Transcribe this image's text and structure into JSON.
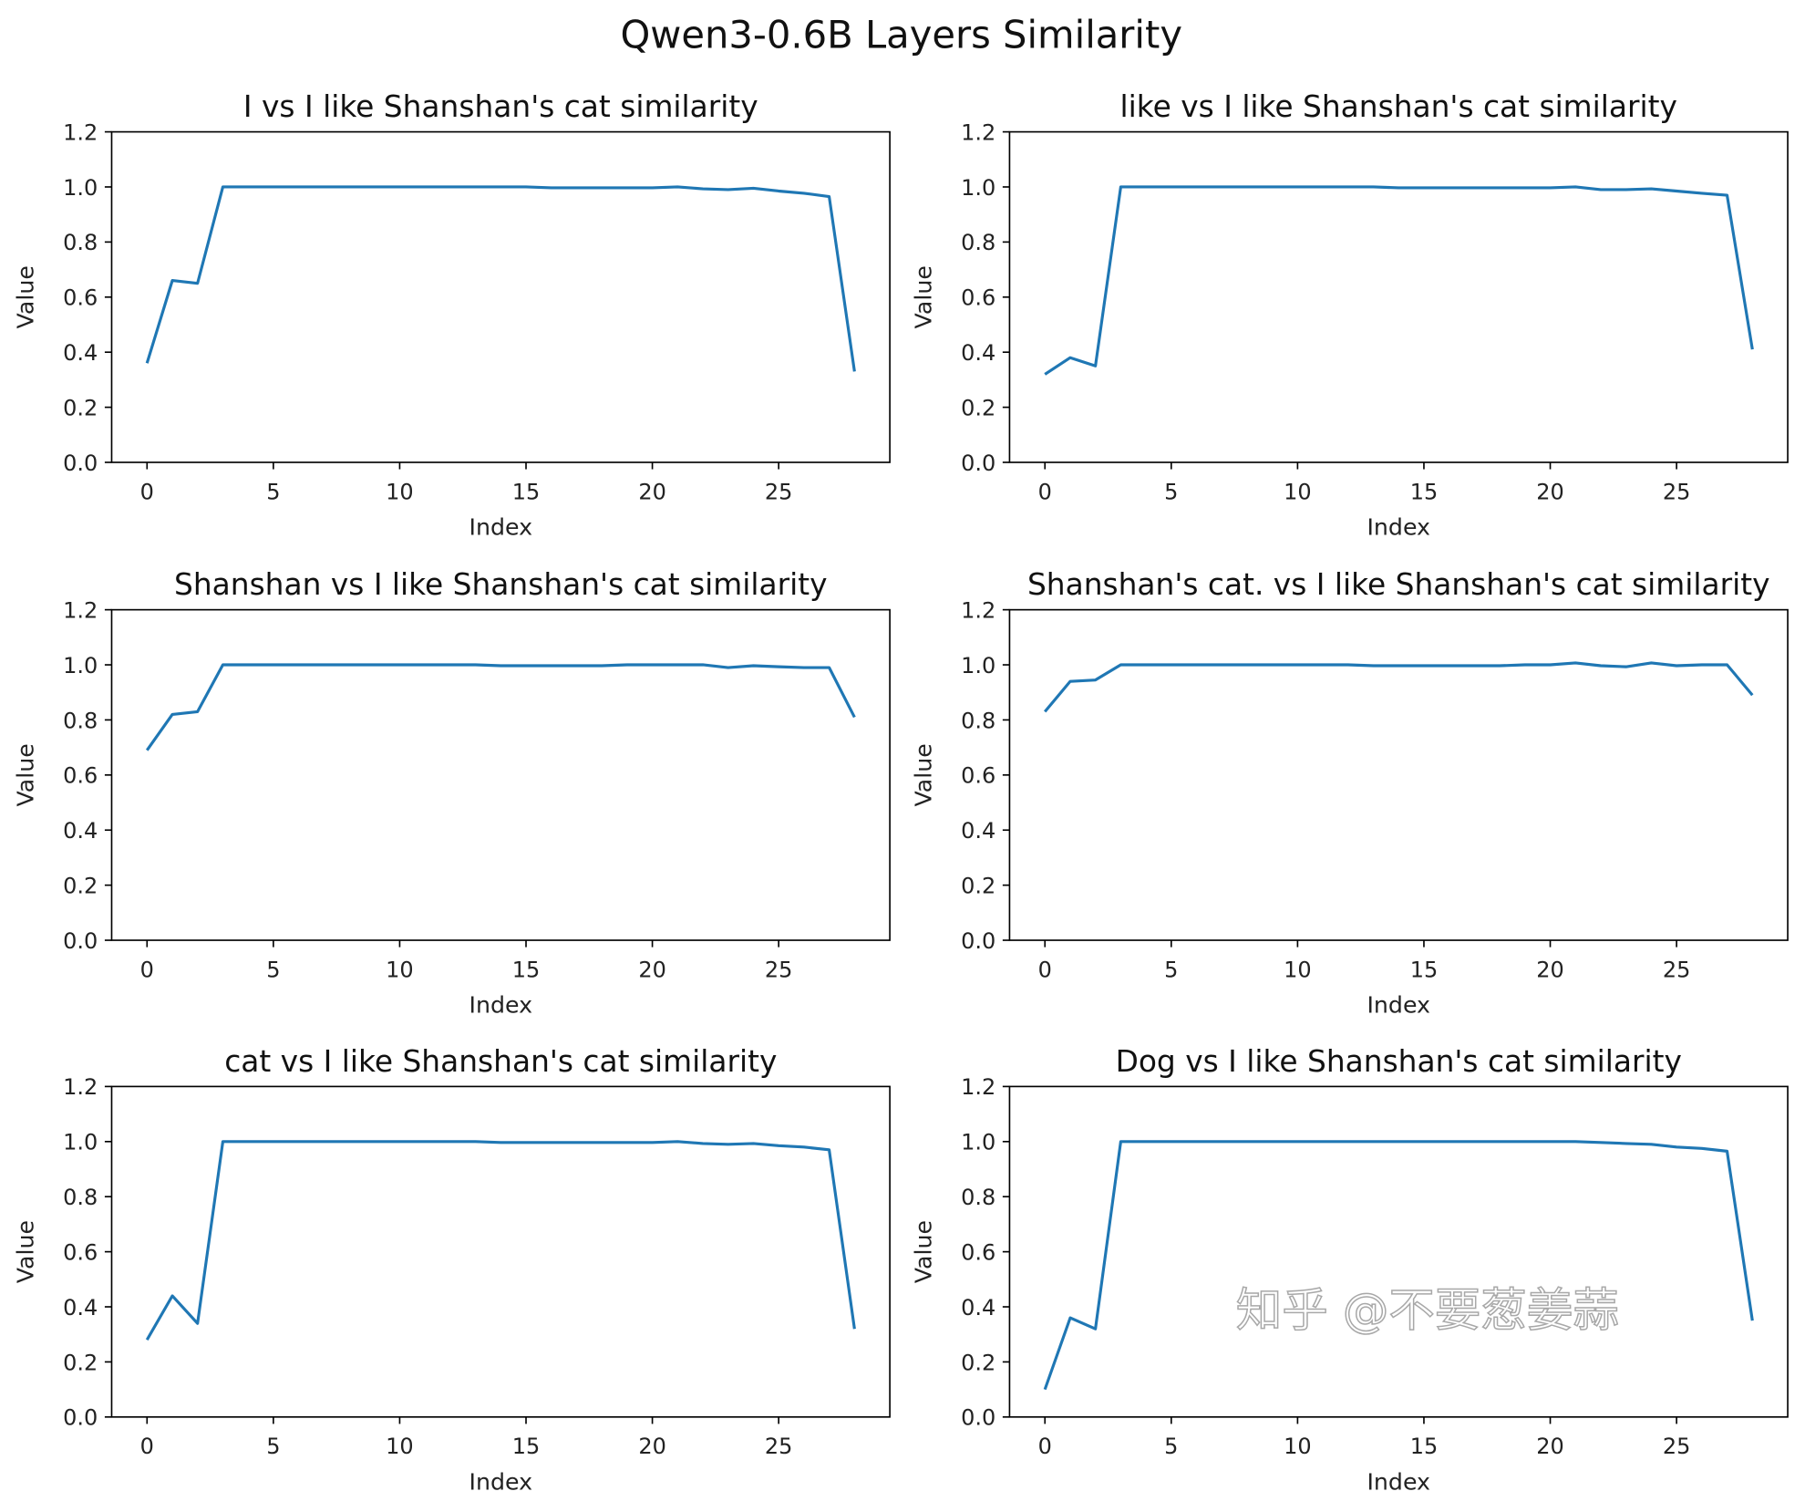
{
  "chart_data": {
    "title": "Qwen3-0.6B Layers Similarity",
    "watermark": "知乎 @不要葱姜蒜",
    "line_color": "#1f77b4",
    "subplots": [
      {
        "type": "line",
        "title": "I vs I like Shanshan's cat similarity",
        "xlabel": "Index",
        "ylabel": "Value",
        "xlim": [
          -1.4,
          29.4
        ],
        "ylim": [
          0,
          1.2
        ],
        "xticks": [
          0,
          5,
          10,
          15,
          20,
          25
        ],
        "yticks": [
          "0.0",
          "0.2",
          "0.4",
          "0.6",
          "0.8",
          "1.0",
          "1.2"
        ],
        "x": [
          0,
          1,
          2,
          3,
          4,
          5,
          6,
          7,
          8,
          9,
          10,
          11,
          12,
          13,
          14,
          15,
          16,
          17,
          18,
          19,
          20,
          21,
          22,
          23,
          24,
          25,
          26,
          27,
          28
        ],
        "y": [
          0.36,
          0.66,
          0.65,
          1.0,
          1.0,
          1.0,
          1.0,
          1.0,
          1.0,
          1.0,
          1.0,
          1.0,
          1.0,
          1.0,
          1.0,
          1.0,
          0.997,
          0.997,
          0.997,
          0.997,
          0.997,
          1.0,
          0.993,
          0.99,
          0.995,
          0.985,
          0.977,
          0.965,
          0.33
        ]
      },
      {
        "type": "line",
        "title": "like vs I like Shanshan's cat similarity",
        "xlabel": "Index",
        "ylabel": "Value",
        "xlim": [
          -1.4,
          29.4
        ],
        "ylim": [
          0,
          1.2
        ],
        "xticks": [
          0,
          5,
          10,
          15,
          20,
          25
        ],
        "yticks": [
          "0.0",
          "0.2",
          "0.4",
          "0.6",
          "0.8",
          "1.0",
          "1.2"
        ],
        "x": [
          0,
          1,
          2,
          3,
          4,
          5,
          6,
          7,
          8,
          9,
          10,
          11,
          12,
          13,
          14,
          15,
          16,
          17,
          18,
          19,
          20,
          21,
          22,
          23,
          24,
          25,
          26,
          27,
          28
        ],
        "y": [
          0.32,
          0.38,
          0.35,
          1.0,
          1.0,
          1.0,
          1.0,
          1.0,
          1.0,
          1.0,
          1.0,
          1.0,
          1.0,
          1.0,
          0.997,
          0.997,
          0.997,
          0.997,
          0.997,
          0.997,
          0.997,
          1.0,
          0.99,
          0.99,
          0.993,
          0.985,
          0.977,
          0.97,
          0.41
        ]
      },
      {
        "type": "line",
        "title": "Shanshan vs I like Shanshan's cat similarity",
        "xlabel": "Index",
        "ylabel": "Value",
        "xlim": [
          -1.4,
          29.4
        ],
        "ylim": [
          0,
          1.2
        ],
        "xticks": [
          0,
          5,
          10,
          15,
          20,
          25
        ],
        "yticks": [
          "0.0",
          "0.2",
          "0.4",
          "0.6",
          "0.8",
          "1.0",
          "1.2"
        ],
        "x": [
          0,
          1,
          2,
          3,
          4,
          5,
          6,
          7,
          8,
          9,
          10,
          11,
          12,
          13,
          14,
          15,
          16,
          17,
          18,
          19,
          20,
          21,
          22,
          23,
          24,
          25,
          26,
          27,
          28
        ],
        "y": [
          0.69,
          0.82,
          0.83,
          1.0,
          1.0,
          1.0,
          1.0,
          1.0,
          1.0,
          1.0,
          1.0,
          1.0,
          1.0,
          1.0,
          0.997,
          0.997,
          0.997,
          0.997,
          0.997,
          1.0,
          1.0,
          1.0,
          1.0,
          0.99,
          0.997,
          0.993,
          0.99,
          0.99,
          0.81
        ]
      },
      {
        "type": "line",
        "title": "Shanshan's cat. vs I like Shanshan's cat similarity",
        "xlabel": "Index",
        "ylabel": "Value",
        "xlim": [
          -1.4,
          29.4
        ],
        "ylim": [
          0,
          1.2
        ],
        "xticks": [
          0,
          5,
          10,
          15,
          20,
          25
        ],
        "yticks": [
          "0.0",
          "0.2",
          "0.4",
          "0.6",
          "0.8",
          "1.0",
          "1.2"
        ],
        "x": [
          0,
          1,
          2,
          3,
          4,
          5,
          6,
          7,
          8,
          9,
          10,
          11,
          12,
          13,
          14,
          15,
          16,
          17,
          18,
          19,
          20,
          21,
          22,
          23,
          24,
          25,
          26,
          27,
          28
        ],
        "y": [
          0.83,
          0.94,
          0.945,
          1.0,
          1.0,
          1.0,
          1.0,
          1.0,
          1.0,
          1.0,
          1.0,
          1.0,
          1.0,
          0.997,
          0.997,
          0.997,
          0.997,
          0.997,
          0.997,
          1.0,
          1.0,
          1.007,
          0.997,
          0.993,
          1.007,
          0.997,
          1.0,
          1.0,
          0.89
        ]
      },
      {
        "type": "line",
        "title": "cat vs I like Shanshan's cat similarity",
        "xlabel": "Index",
        "ylabel": "Value",
        "xlim": [
          -1.4,
          29.4
        ],
        "ylim": [
          0,
          1.2
        ],
        "xticks": [
          0,
          5,
          10,
          15,
          20,
          25
        ],
        "yticks": [
          "0.0",
          "0.2",
          "0.4",
          "0.6",
          "0.8",
          "1.0",
          "1.2"
        ],
        "x": [
          0,
          1,
          2,
          3,
          4,
          5,
          6,
          7,
          8,
          9,
          10,
          11,
          12,
          13,
          14,
          15,
          16,
          17,
          18,
          19,
          20,
          21,
          22,
          23,
          24,
          25,
          26,
          27,
          28
        ],
        "y": [
          0.28,
          0.44,
          0.34,
          1.0,
          1.0,
          1.0,
          1.0,
          1.0,
          1.0,
          1.0,
          1.0,
          1.0,
          1.0,
          1.0,
          0.997,
          0.997,
          0.997,
          0.997,
          0.997,
          0.997,
          0.997,
          1.0,
          0.993,
          0.99,
          0.993,
          0.985,
          0.98,
          0.97,
          0.32
        ]
      },
      {
        "type": "line",
        "title": "Dog vs I like Shanshan's cat similarity",
        "xlabel": "Index",
        "ylabel": "Value",
        "xlim": [
          -1.4,
          29.4
        ],
        "ylim": [
          0,
          1.2
        ],
        "xticks": [
          0,
          5,
          10,
          15,
          20,
          25
        ],
        "yticks": [
          "0.0",
          "0.2",
          "0.4",
          "0.6",
          "0.8",
          "1.0",
          "1.2"
        ],
        "x": [
          0,
          1,
          2,
          3,
          4,
          5,
          6,
          7,
          8,
          9,
          10,
          11,
          12,
          13,
          14,
          15,
          16,
          17,
          18,
          19,
          20,
          21,
          22,
          23,
          24,
          25,
          26,
          27,
          28
        ],
        "y": [
          0.1,
          0.36,
          0.32,
          1.0,
          1.0,
          1.0,
          1.0,
          1.0,
          1.0,
          1.0,
          1.0,
          1.0,
          1.0,
          1.0,
          1.0,
          1.0,
          1.0,
          1.0,
          1.0,
          1.0,
          1.0,
          1.0,
          0.997,
          0.993,
          0.99,
          0.98,
          0.975,
          0.965,
          0.35
        ]
      }
    ]
  }
}
